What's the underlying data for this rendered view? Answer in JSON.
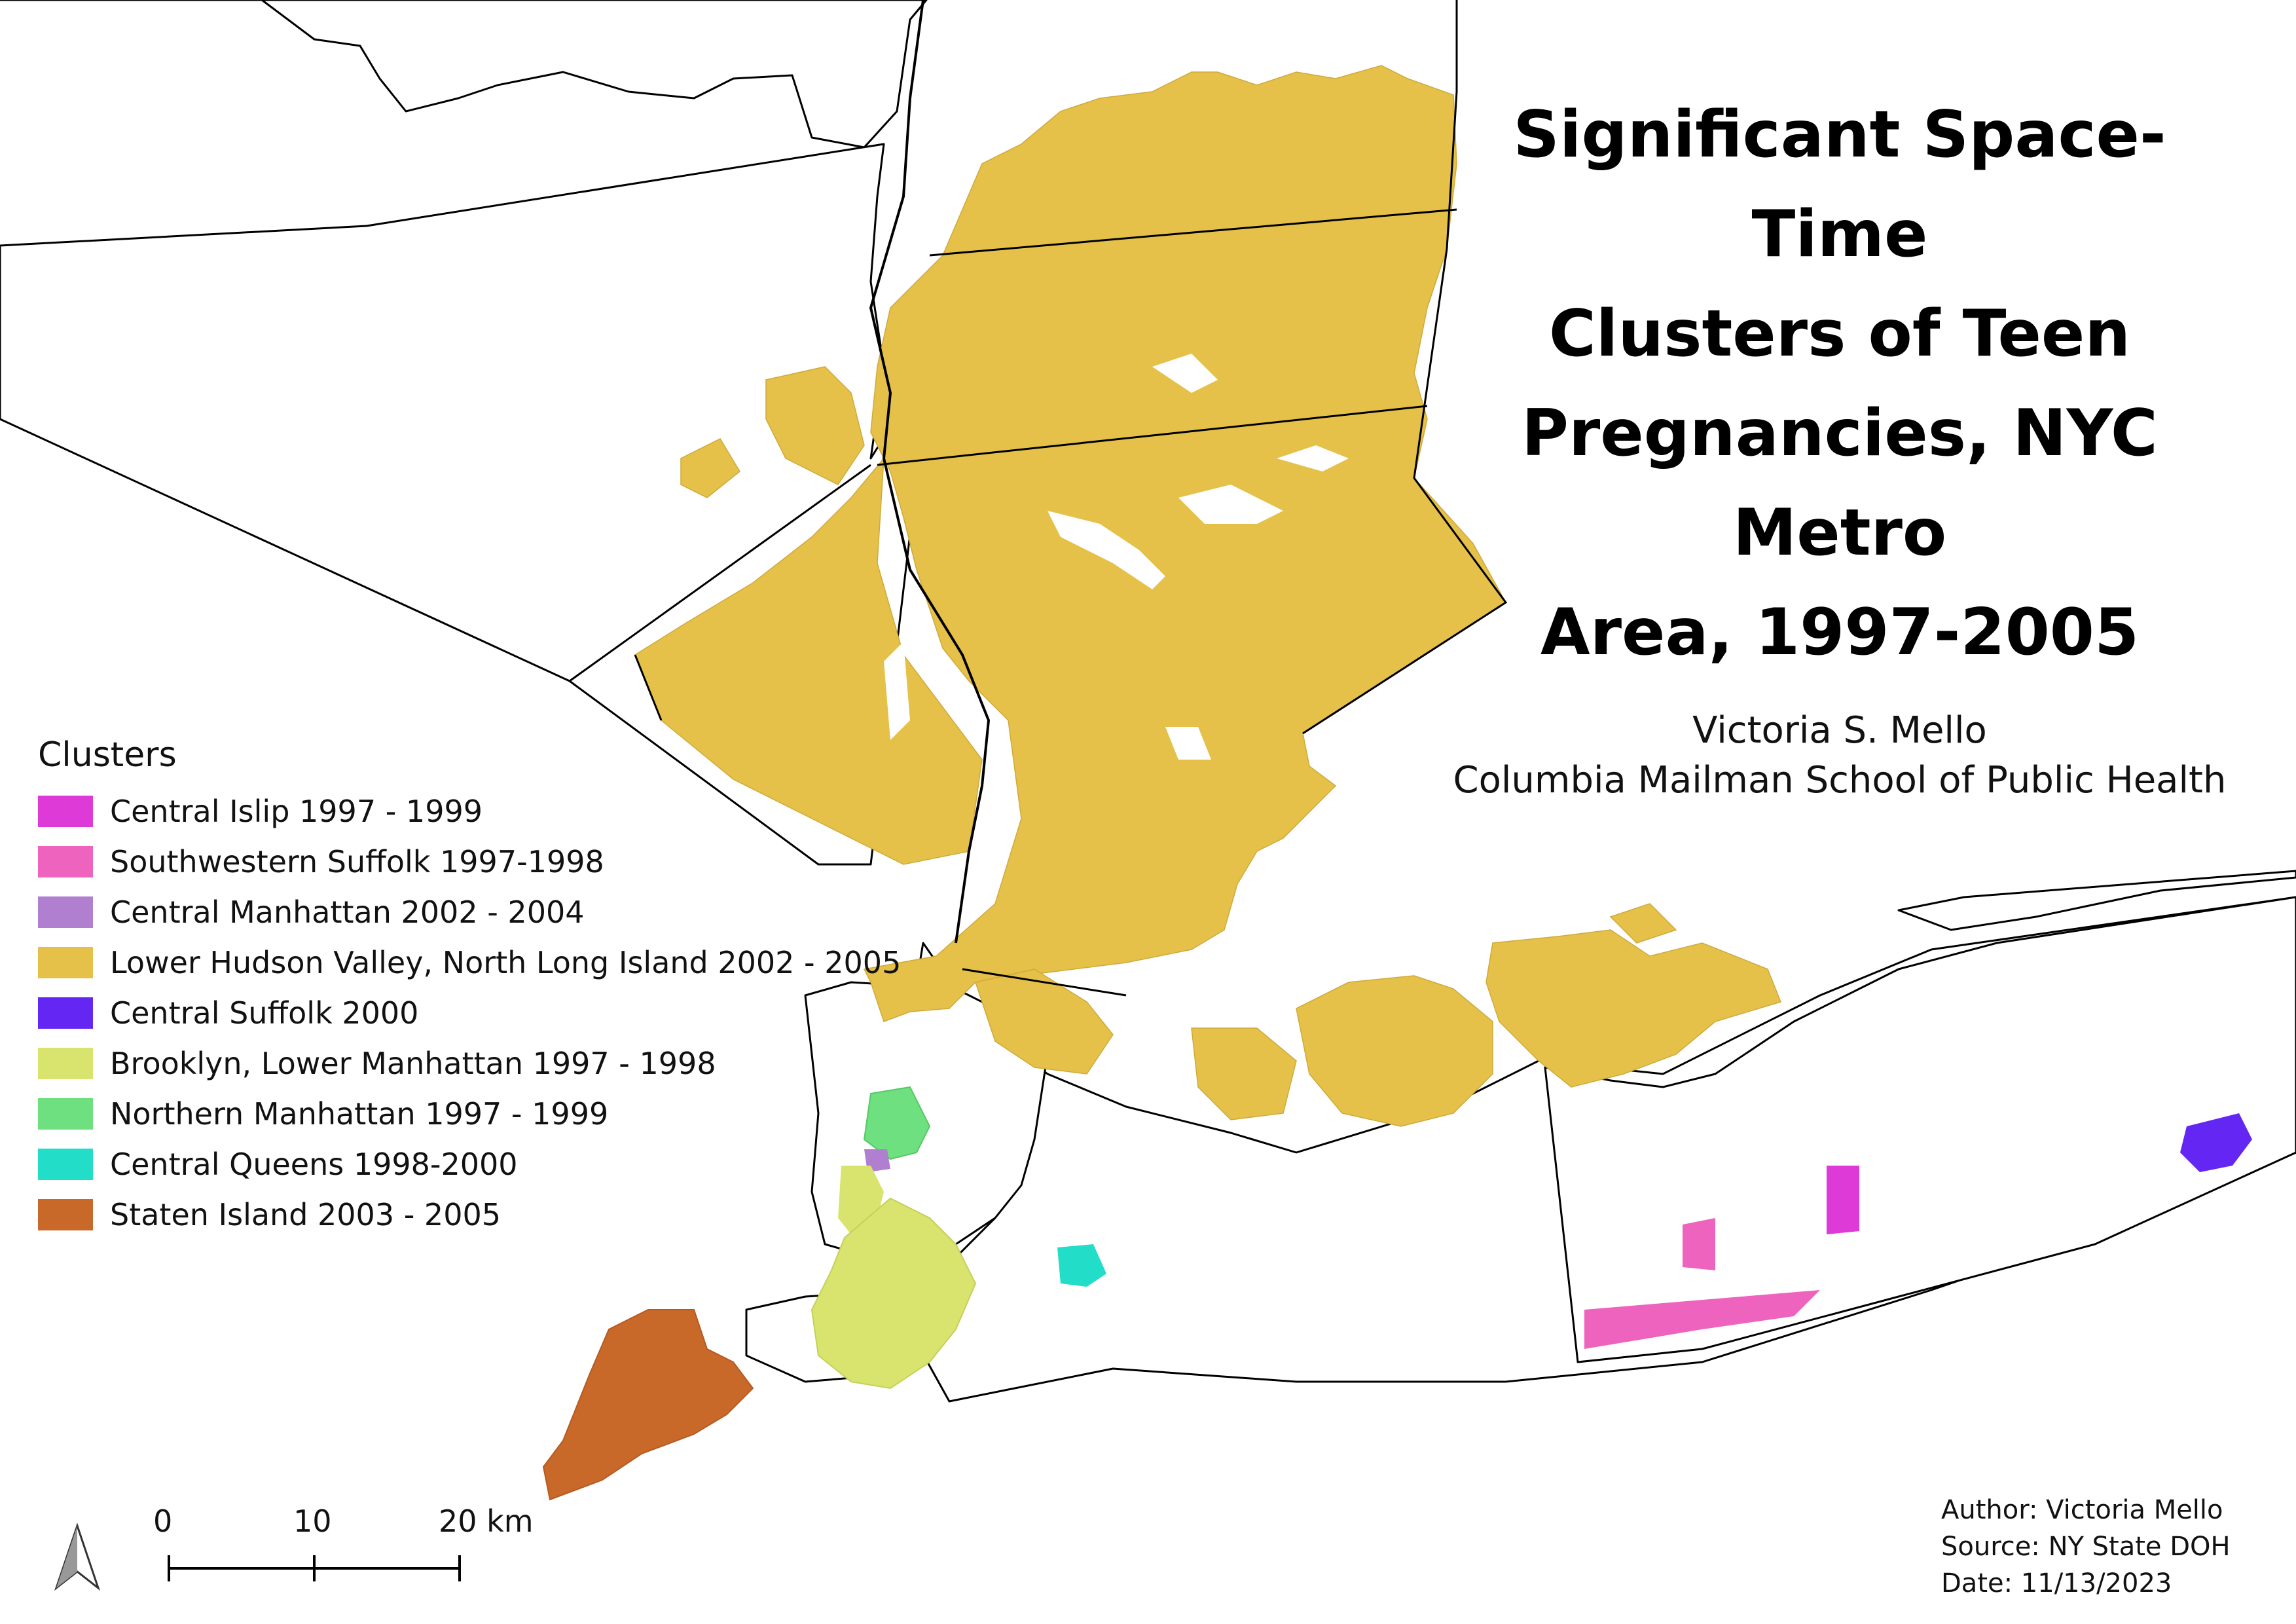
{
  "title_lines": [
    "Significant Space-Time",
    "Clusters of Teen",
    "Pregnancies, NYC Metro",
    "Area, 1997-2005"
  ],
  "author_name": "Victoria S. Mello",
  "affiliation": "Columbia Mailman School of Public Health",
  "legend": {
    "title": "Clusters",
    "items": [
      {
        "label": "Central Islip 1997 - 1999",
        "color": "#dd3ad8"
      },
      {
        "label": "Southwestern Suffolk 1997-1998",
        "color": "#ee63bd"
      },
      {
        "label": "Central Manhattan 2002 - 2004",
        "color": "#b07fd0"
      },
      {
        "label": "Lower Hudson Valley,  North Long Island 2002 - 2005",
        "color": "#e5c14a"
      },
      {
        "label": "Central Suffolk 2000",
        "color": "#6426f2"
      },
      {
        "label": "Brooklyn,  Lower Manhattan 1997 - 1998",
        "color": "#d9e46f"
      },
      {
        "label": "Northern Manhattan 1997 - 1999",
        "color": "#6fe07f"
      },
      {
        "label": "Central Queens 1998-2000",
        "color": "#22ddc8"
      },
      {
        "label": "Staten Island 2003 - 2005",
        "color": "#c8692a"
      }
    ]
  },
  "scale_bar": {
    "ticks": [
      "0",
      "10",
      "20 km"
    ]
  },
  "credits": [
    "Author: Victoria Mello",
    "Source: NY State DOH",
    "Date: 11/13/2023"
  ],
  "north_arrow_icon": "north-arrow-icon"
}
